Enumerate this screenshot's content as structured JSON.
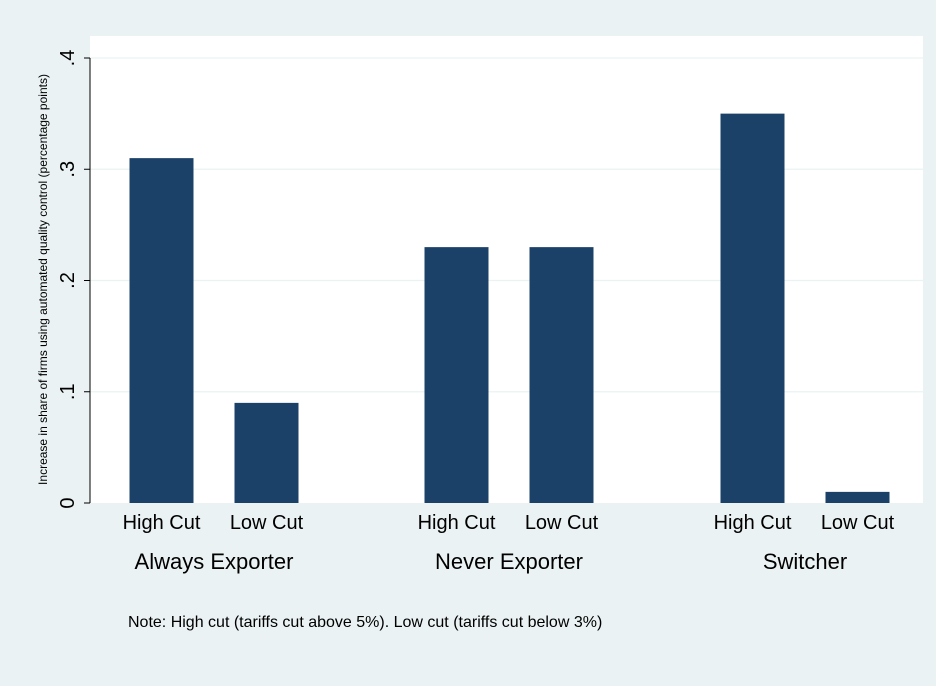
{
  "chart_data": {
    "type": "bar",
    "ylabel": "Increase in share of firms using automated quality control (percentage points)",
    "ylim": [
      0,
      0.4
    ],
    "yticks": [
      {
        "value": 0,
        "label": "0"
      },
      {
        "value": 0.1,
        "label": ".1"
      },
      {
        "value": 0.2,
        "label": ".2"
      },
      {
        "value": 0.3,
        "label": ".3"
      },
      {
        "value": 0.4,
        "label": ".4"
      }
    ],
    "grid": true,
    "bar_color": "#1c4169",
    "groups": [
      {
        "name": "Always Exporter",
        "bars": [
          {
            "label": "High Cut",
            "value": 0.31
          },
          {
            "label": "Low Cut",
            "value": 0.09
          }
        ]
      },
      {
        "name": "Never Exporter",
        "bars": [
          {
            "label": "High Cut",
            "value": 0.23
          },
          {
            "label": "Low Cut",
            "value": 0.23
          }
        ]
      },
      {
        "name": "Switcher",
        "bars": [
          {
            "label": "High Cut",
            "value": 0.35
          },
          {
            "label": "Low Cut",
            "value": 0.01
          }
        ]
      }
    ],
    "note": "Note: High cut (tariffs cut above 5%). Low cut (tariffs cut below 3%)"
  }
}
